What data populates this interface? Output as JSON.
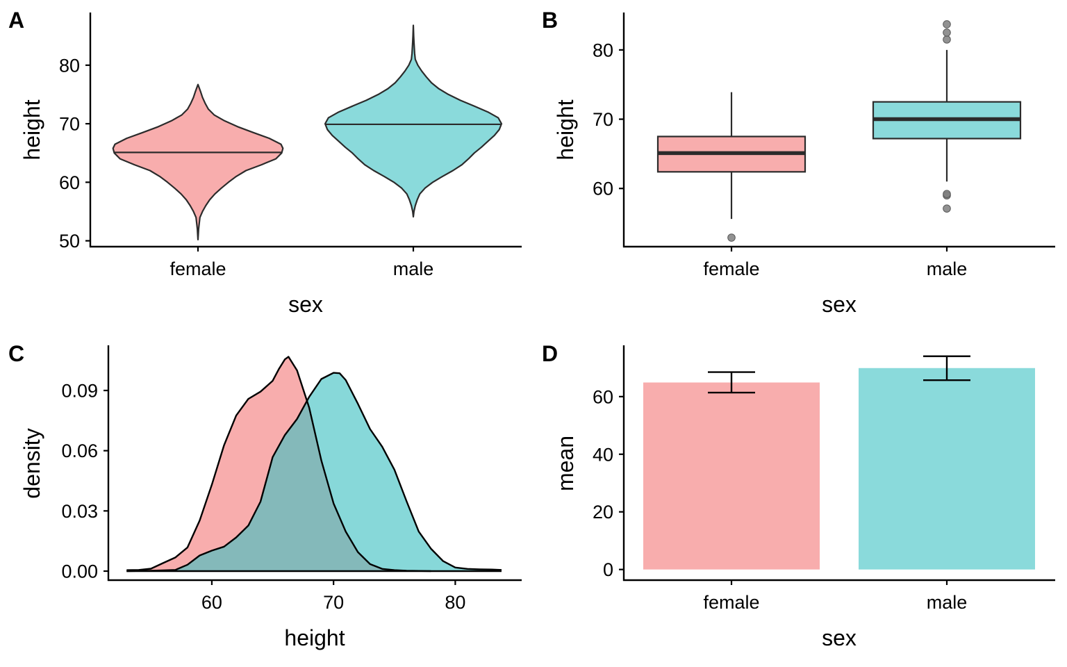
{
  "figure": {
    "panel_letters": [
      "A",
      "B",
      "C",
      "D"
    ]
  },
  "colors": {
    "female": "#F8ADAD",
    "male": "#8ADADB",
    "overlap": "#87B1B2",
    "outline": "#2B2B2B",
    "outlier": "#7F7F7F"
  },
  "chart_data": [
    {
      "panel": "A",
      "type": "violin",
      "title": "",
      "xlabel": "sex",
      "ylabel": "height",
      "categories": [
        "female",
        "male"
      ],
      "yticks": [
        50,
        60,
        70,
        80
      ],
      "ylim": [
        49,
        89
      ],
      "series": [
        {
          "name": "female",
          "color": "female",
          "median": 65.1,
          "profile": [
            [
              50.2,
              0.0
            ],
            [
              52.0,
              0.02
            ],
            [
              54.0,
              0.06
            ],
            [
              55.0,
              0.14
            ],
            [
              56.0,
              0.24
            ],
            [
              57.0,
              0.36
            ],
            [
              58.0,
              0.52
            ],
            [
              59.0,
              0.72
            ],
            [
              60.0,
              0.94
            ],
            [
              61.0,
              1.18
            ],
            [
              62.0,
              1.48
            ],
            [
              63.0,
              1.96
            ],
            [
              64.0,
              2.4
            ],
            [
              65.0,
              2.58
            ],
            [
              65.8,
              2.62
            ],
            [
              66.5,
              2.56
            ],
            [
              67.5,
              2.2
            ],
            [
              68.5,
              1.7
            ],
            [
              69.5,
              1.22
            ],
            [
              70.5,
              0.82
            ],
            [
              71.5,
              0.5
            ],
            [
              72.5,
              0.32
            ],
            [
              73.5,
              0.22
            ],
            [
              74.5,
              0.14
            ],
            [
              75.5,
              0.08
            ],
            [
              76.7,
              0.0
            ]
          ]
        },
        {
          "name": "male",
          "color": "male",
          "median": 69.9,
          "profile": [
            [
              54.1,
              0.0
            ],
            [
              55.0,
              0.02
            ],
            [
              56.0,
              0.06
            ],
            [
              57.0,
              0.12
            ],
            [
              58.0,
              0.2
            ],
            [
              59.0,
              0.36
            ],
            [
              60.0,
              0.6
            ],
            [
              61.0,
              0.9
            ],
            [
              62.0,
              1.22
            ],
            [
              63.0,
              1.5
            ],
            [
              64.0,
              1.7
            ],
            [
              65.0,
              1.88
            ],
            [
              66.0,
              2.1
            ],
            [
              67.0,
              2.3
            ],
            [
              68.0,
              2.5
            ],
            [
              69.0,
              2.65
            ],
            [
              70.0,
              2.72
            ],
            [
              71.0,
              2.62
            ],
            [
              72.0,
              2.3
            ],
            [
              73.0,
              1.88
            ],
            [
              74.0,
              1.45
            ],
            [
              75.0,
              1.08
            ],
            [
              76.0,
              0.78
            ],
            [
              77.0,
              0.56
            ],
            [
              78.0,
              0.4
            ],
            [
              79.0,
              0.26
            ],
            [
              80.0,
              0.14
            ],
            [
              81.0,
              0.06
            ],
            [
              82.0,
              0.04
            ],
            [
              83.0,
              0.03
            ],
            [
              84.0,
              0.02
            ],
            [
              85.0,
              0.01
            ],
            [
              86.8,
              0.0
            ]
          ]
        }
      ]
    },
    {
      "panel": "B",
      "type": "box",
      "title": "",
      "xlabel": "sex",
      "ylabel": "height",
      "categories": [
        "female",
        "male"
      ],
      "yticks": [
        60,
        70,
        80
      ],
      "ylim": [
        51.6,
        85.4
      ],
      "series": [
        {
          "name": "female",
          "color": "female",
          "whisker_low": 55.6,
          "q1": 62.4,
          "median": 65.1,
          "q3": 67.5,
          "whisker_high": 73.9,
          "outliers": [
            52.9
          ]
        },
        {
          "name": "male",
          "color": "male",
          "whisker_low": 61.0,
          "q1": 67.2,
          "median": 70.0,
          "q3": 72.5,
          "whisker_high": 80.0,
          "outliers": [
            57.1,
            59.0,
            59.2,
            81.5,
            82.5,
            83.7
          ]
        }
      ]
    },
    {
      "panel": "C",
      "type": "area",
      "title": "",
      "xlabel": "height",
      "ylabel": "density",
      "xticks": [
        60,
        70,
        80
      ],
      "yticks": [
        0.0,
        0.03,
        0.06,
        0.09
      ],
      "ytick_labels": [
        "0.00",
        "0.03",
        "0.06",
        "0.09"
      ],
      "xlim": [
        51.5,
        85.4
      ],
      "ylim": [
        -0.0045,
        0.1125
      ],
      "series": [
        {
          "name": "female",
          "color": "female",
          "points": [
            [
              53,
              0.0005
            ],
            [
              54,
              0.0006
            ],
            [
              55,
              0.0012
            ],
            [
              56,
              0.004
            ],
            [
              57,
              0.0068
            ],
            [
              58,
              0.0118
            ],
            [
              59,
              0.0252
            ],
            [
              60,
              0.043
            ],
            [
              61,
              0.0627
            ],
            [
              62,
              0.0775
            ],
            [
              63,
              0.0858
            ],
            [
              64,
              0.0894
            ],
            [
              65,
              0.0948
            ],
            [
              65.5,
              0.1006
            ],
            [
              66,
              0.1055
            ],
            [
              66.3,
              0.1068
            ],
            [
              67,
              0.1
            ],
            [
              68,
              0.0814
            ],
            [
              69,
              0.0551
            ],
            [
              70,
              0.0337
            ],
            [
              71,
              0.0197
            ],
            [
              72,
              0.0095
            ],
            [
              73,
              0.0035
            ],
            [
              74,
              0.0011
            ],
            [
              75,
              0.0005
            ],
            [
              76,
              0.0002
            ],
            [
              78,
              0.0
            ]
          ]
        },
        {
          "name": "male",
          "color": "male",
          "points": [
            [
              53,
              0.0
            ],
            [
              55,
              0.0002
            ],
            [
              57,
              0.0006
            ],
            [
              58,
              0.0032
            ],
            [
              59,
              0.0078
            ],
            [
              60,
              0.0102
            ],
            [
              61,
              0.0122
            ],
            [
              62,
              0.0168
            ],
            [
              63,
              0.0227
            ],
            [
              64,
              0.0346
            ],
            [
              65,
              0.0568
            ],
            [
              66,
              0.0678
            ],
            [
              67,
              0.0758
            ],
            [
              68,
              0.0868
            ],
            [
              69,
              0.0957
            ],
            [
              70,
              0.0988
            ],
            [
              70.5,
              0.0986
            ],
            [
              71,
              0.0952
            ],
            [
              72,
              0.0834
            ],
            [
              73,
              0.0708
            ],
            [
              74,
              0.062
            ],
            [
              75,
              0.0505
            ],
            [
              76,
              0.0348
            ],
            [
              77,
              0.0197
            ],
            [
              78,
              0.0112
            ],
            [
              79,
              0.005
            ],
            [
              80,
              0.0018
            ],
            [
              81,
              0.0011
            ],
            [
              82,
              0.0009
            ],
            [
              83,
              0.0008
            ],
            [
              83.8,
              0.0006
            ]
          ]
        }
      ]
    },
    {
      "panel": "D",
      "type": "bar",
      "title": "",
      "xlabel": "sex",
      "ylabel": "mean",
      "categories": [
        "female",
        "male"
      ],
      "yticks": [
        0,
        20,
        40,
        60
      ],
      "ylim": [
        -3.7,
        77.8
      ],
      "series": [
        {
          "name": "female",
          "color": "female",
          "value": 64.9,
          "err_low": 61.4,
          "err_high": 68.5
        },
        {
          "name": "male",
          "color": "male",
          "value": 69.9,
          "err_low": 65.7,
          "err_high": 74.0
        }
      ]
    }
  ]
}
